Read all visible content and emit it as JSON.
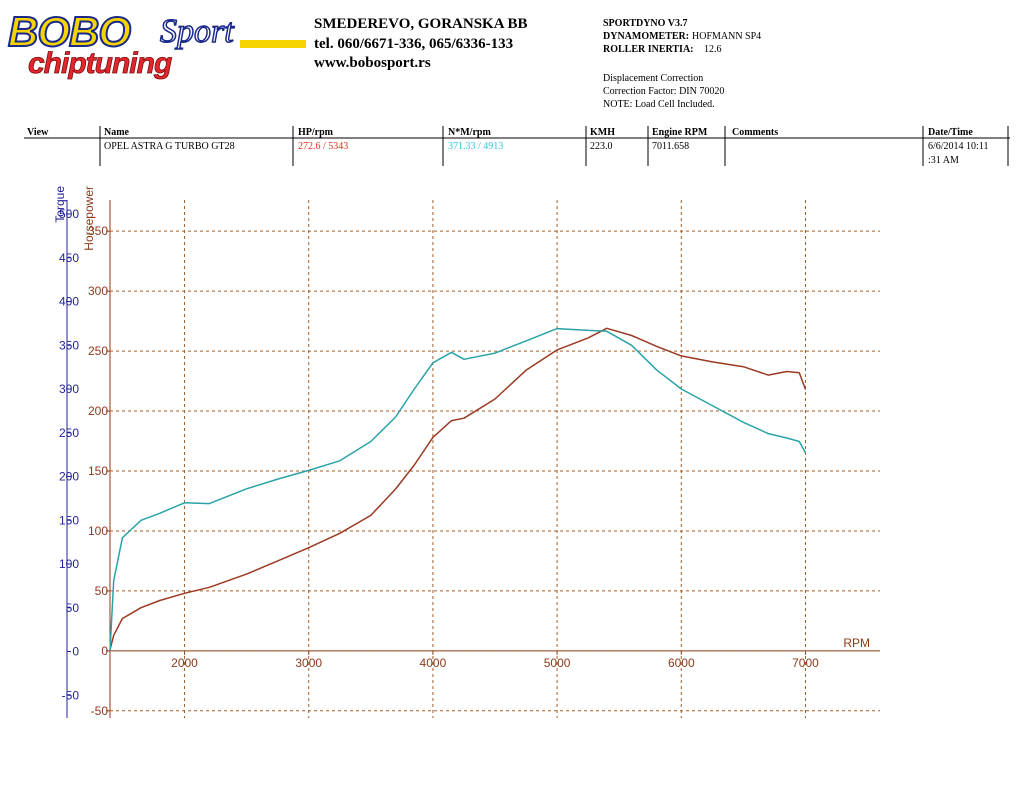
{
  "header": {
    "logo": {
      "brand": "BOBO",
      "script": "Sport",
      "tagline": "chiptuning"
    },
    "address": [
      "SMEDEREVO, GORANSKA BB",
      "tel. 060/6671-336, 065/6336-133",
      "www.bobosport.rs"
    ],
    "software": "SPORTDYNO V3.7",
    "dynamometer": {
      "label": "DYNAMOMETER:",
      "value": "HOFMANN SP4"
    },
    "roller_inertia": {
      "label": "ROLLER INERTIA:",
      "value": "12.6"
    },
    "notes": [
      "Displacement Correction",
      "Correction Factor: DIN 70020",
      "NOTE: Load Cell Included."
    ]
  },
  "table": {
    "columns": [
      "View",
      "Name",
      "HP/rpm",
      "N*M/rpm",
      "KMH",
      "Engine RPM",
      "Comments",
      "Date/Time"
    ],
    "row": {
      "name": "OPEL ASTRA G TURBO GT28",
      "hp": "272.6 / 5343",
      "nm": "371.33 / 4913",
      "kmh": "223.0",
      "rpm": "7011.658",
      "datetime": [
        "6/6/2014 10:11",
        ":31 AM"
      ]
    }
  },
  "chart_data": {
    "type": "line",
    "x_label": "RPM",
    "y_label": "Horsepower",
    "y2_label": "Torque",
    "x": [
      1400,
      1430,
      1500,
      1650,
      1800,
      2000,
      2200,
      2500,
      2750,
      3000,
      3250,
      3500,
      3700,
      3850,
      4000,
      4150,
      4250,
      4500,
      4750,
      5000,
      5250,
      5400,
      5600,
      5800,
      6000,
      6250,
      6500,
      6700,
      6850,
      6950,
      7000
    ],
    "series": [
      {
        "color": "#9b3a22",
        "values": [
          1,
          13,
          27,
          36,
          42,
          48,
          53,
          64,
          75,
          86,
          98,
          113,
          135,
          155,
          178,
          192,
          194,
          210,
          234,
          251,
          261,
          269,
          263,
          254,
          246,
          241,
          237,
          230,
          233,
          232,
          218
        ]
      },
      {
        "color": "#2aa3a8",
        "axis": "y2",
        "values": [
          1,
          81,
          130,
          150,
          158,
          170,
          169,
          186,
          197,
          207,
          218,
          240,
          268,
          300,
          330,
          342,
          334,
          341,
          355,
          369,
          367,
          366,
          350,
          322,
          300,
          281,
          262,
          249,
          244,
          240,
          227
        ]
      }
    ],
    "xlim": [
      1400,
      7600
    ],
    "xticks": [
      2000,
      3000,
      4000,
      5000,
      6000,
      7000
    ],
    "ylim": [
      -56,
      376
    ],
    "yticks": [
      -50,
      0,
      50,
      100,
      150,
      200,
      250,
      300,
      350
    ],
    "y2lim": [
      -76,
      516
    ],
    "y2ticks": [
      -50,
      0,
      50,
      100,
      150,
      200,
      250,
      300,
      350,
      400,
      450,
      500
    ],
    "grid": true,
    "y_color": "#8b3a1a",
    "y2_color": "#23239a",
    "grid_color": "#a0602a"
  }
}
